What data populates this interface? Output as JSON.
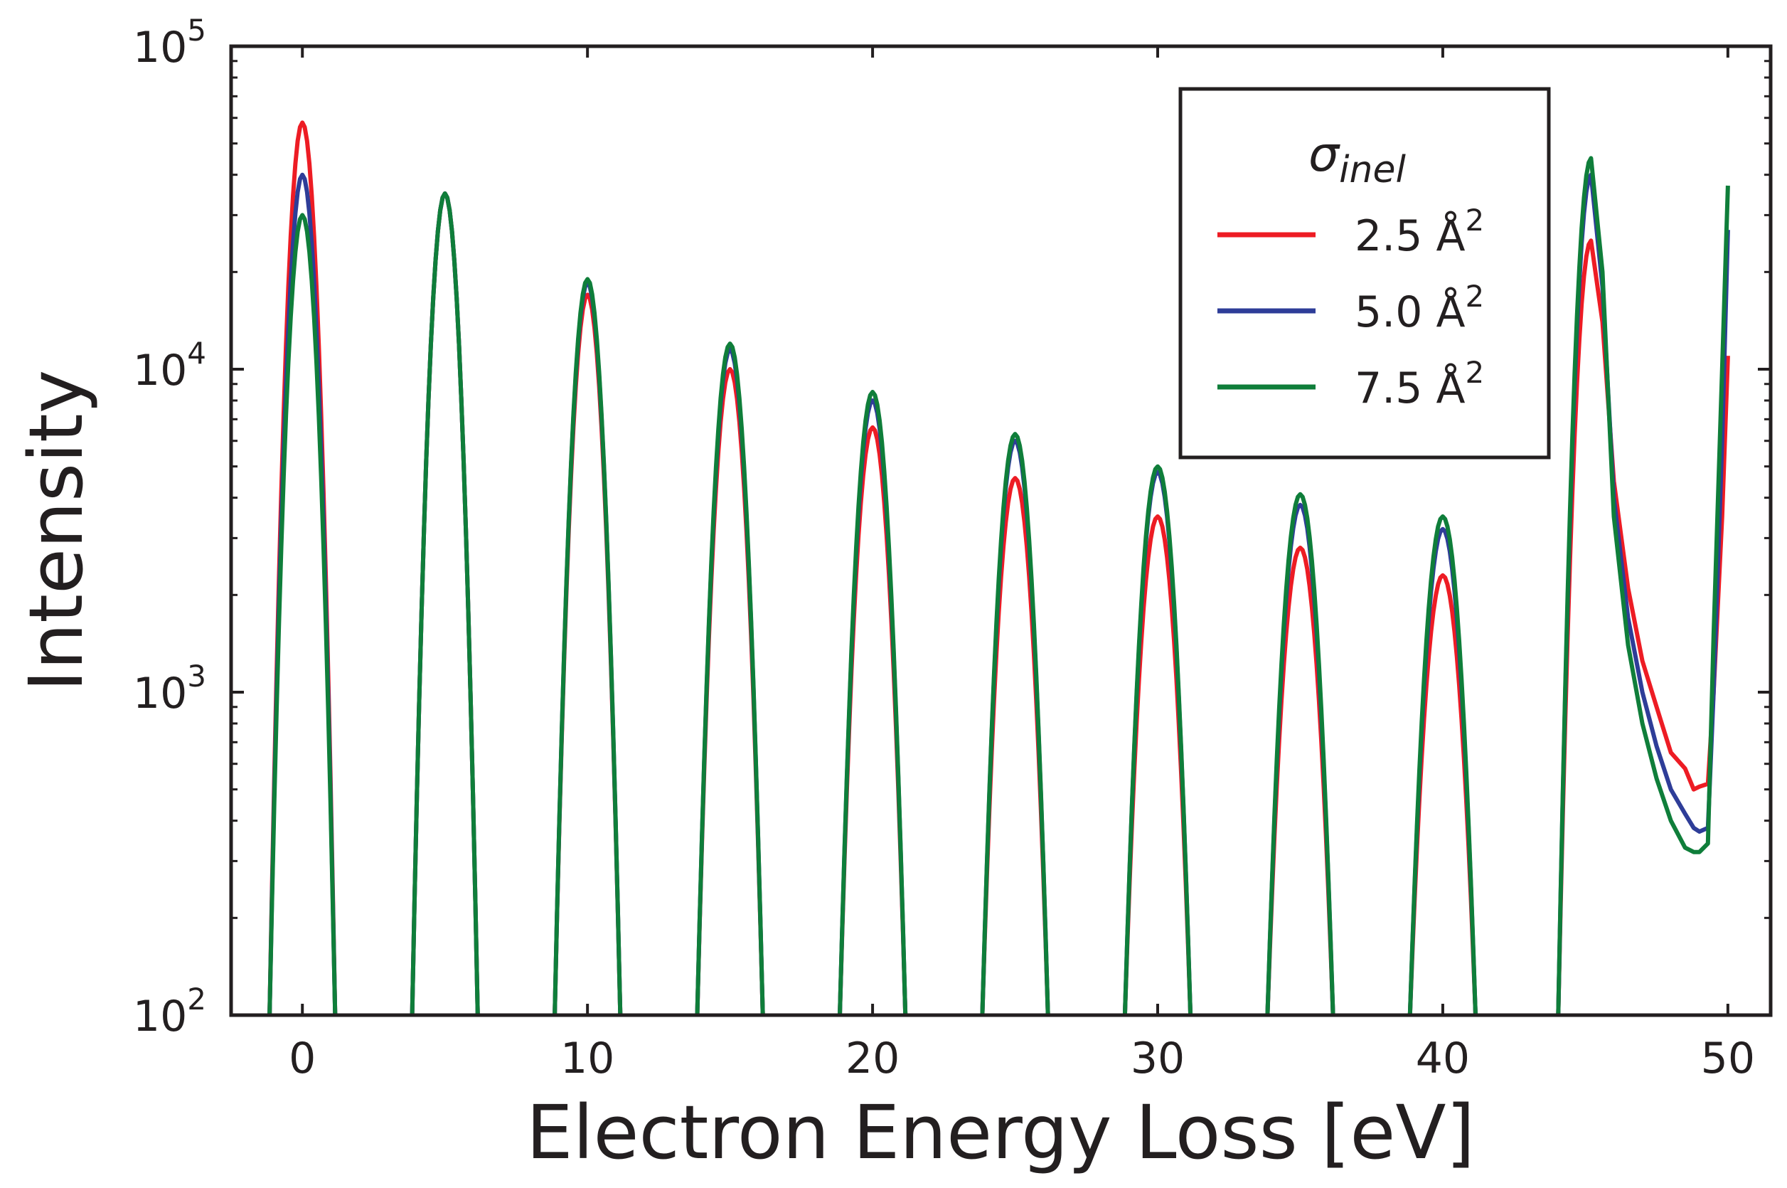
{
  "chart_data": {
    "type": "line",
    "xlabel": "Electron Energy Loss [eV]",
    "ylabel": "Intensity",
    "xlim": [
      -2.5,
      51.5
    ],
    "ylim": [
      100,
      100000
    ],
    "yscale": "log",
    "x_ticks": [
      0,
      10,
      20,
      30,
      40,
      50
    ],
    "x_tick_labels": [
      "0",
      "10",
      "20",
      "30",
      "40",
      "50"
    ],
    "y_ticks": [
      {
        "base": "10",
        "exp": "2",
        "value": 100
      },
      {
        "base": "10",
        "exp": "3",
        "value": 1000
      },
      {
        "base": "10",
        "exp": "4",
        "value": 10000
      },
      {
        "base": "10",
        "exp": "5",
        "value": 100000
      }
    ],
    "legend": {
      "title_symbol": "σ",
      "title_subscript": "inel",
      "location": "upper-right",
      "unit_base": "Å",
      "unit_exp": "2"
    },
    "peak_positions": [
      0,
      5,
      10,
      15,
      20,
      25,
      30,
      35,
      40,
      45.2
    ],
    "series": [
      {
        "name": "2.5",
        "label": "2.5 Å",
        "color": "#ed1c24",
        "peak_heights": [
          58000,
          35000,
          17000,
          10000,
          6600,
          4600,
          3500,
          2800,
          2300,
          25000
        ],
        "tail": {
          "x": [
            45.6,
            46.0,
            46.5,
            47.0,
            47.5,
            48.0,
            48.5,
            48.8,
            49.0,
            49.3
          ],
          "y": [
            14000,
            4500,
            2100,
            1250,
            900,
            650,
            580,
            500,
            510,
            520
          ]
        },
        "end_x": [
          49.5,
          49.8,
          50.0
        ],
        "end_y": [
          1000,
          3500,
          11000
        ]
      },
      {
        "name": "5.0",
        "label": "5.0 Å",
        "color": "#2e3d98",
        "peak_heights": [
          40000,
          35000,
          18500,
          11500,
          8000,
          6000,
          4800,
          3800,
          3200,
          40000
        ],
        "tail": {
          "x": [
            45.6,
            46.0,
            46.5,
            47.0,
            47.5,
            48.0,
            48.5,
            48.8,
            49.0,
            49.3
          ],
          "y": [
            18000,
            4000,
            1700,
            1000,
            680,
            500,
            420,
            380,
            370,
            380
          ]
        },
        "end_x": [
          49.5,
          49.8,
          50.0
        ],
        "end_y": [
          1000,
          6000,
          27000
        ]
      },
      {
        "name": "7.5",
        "label": "7.5 Å",
        "color": "#0f7e3a",
        "peak_heights": [
          30000,
          35000,
          19000,
          12000,
          8500,
          6300,
          5000,
          4100,
          3500,
          45000
        ],
        "tail": {
          "x": [
            45.6,
            46.0,
            46.5,
            47.0,
            47.5,
            48.0,
            48.5,
            48.8,
            49.0,
            49.3
          ],
          "y": [
            20000,
            3500,
            1400,
            800,
            540,
            400,
            330,
            320,
            320,
            340
          ]
        },
        "end_x": [
          49.5,
          49.8,
          50.0
        ],
        "end_y": [
          1500,
          10000,
          37000
        ]
      }
    ]
  }
}
